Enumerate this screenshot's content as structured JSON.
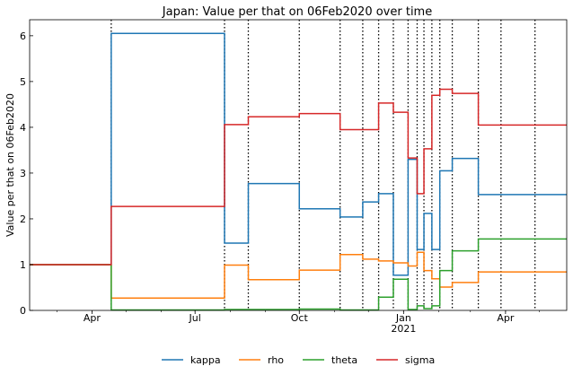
{
  "chart_data": {
    "type": "line",
    "title": "Japan: Value per that on 06Feb2020 over time",
    "xlabel": "",
    "ylabel": "Value per that on 06Feb2020",
    "x_range": [
      "2020-02-06",
      "2021-05-25"
    ],
    "ylim": [
      0,
      6.35
    ],
    "y_ticks": [
      0,
      1,
      2,
      3,
      4,
      5,
      6
    ],
    "x_ticks": [
      {
        "date": "2020-04-01",
        "label": "Apr",
        "sublabel": ""
      },
      {
        "date": "2020-07-01",
        "label": "Jul",
        "sublabel": ""
      },
      {
        "date": "2020-10-01",
        "label": "Oct",
        "sublabel": ""
      },
      {
        "date": "2021-01-01",
        "label": "Jan",
        "sublabel": "2021"
      },
      {
        "date": "2021-04-01",
        "label": "Apr",
        "sublabel": ""
      }
    ],
    "change_dates": [
      "2020-04-18",
      "2020-07-27",
      "2020-08-17",
      "2020-10-01",
      "2020-11-06",
      "2020-11-26",
      "2020-12-10",
      "2020-12-23",
      "2021-01-05",
      "2021-01-13",
      "2021-01-19",
      "2021-01-26",
      "2021-02-02",
      "2021-02-13",
      "2021-03-08",
      "2021-03-28",
      "2021-04-27"
    ],
    "series": [
      {
        "name": "kappa",
        "color": "#1f77b4",
        "steps": [
          [
            "2020-02-06",
            1.0
          ],
          [
            "2020-04-18",
            6.05
          ],
          [
            "2020-07-27",
            1.47
          ],
          [
            "2020-08-17",
            2.77
          ],
          [
            "2020-10-01",
            2.22
          ],
          [
            "2020-11-06",
            2.04
          ],
          [
            "2020-11-26",
            2.37
          ],
          [
            "2020-12-10",
            2.55
          ],
          [
            "2020-12-23",
            0.77
          ],
          [
            "2021-01-05",
            3.3
          ],
          [
            "2021-01-13",
            1.33
          ],
          [
            "2021-01-19",
            2.12
          ],
          [
            "2021-01-26",
            1.33
          ],
          [
            "2021-02-02",
            3.05
          ],
          [
            "2021-02-13",
            3.32
          ],
          [
            "2021-03-08",
            2.53
          ],
          [
            "2021-05-25",
            2.53
          ]
        ]
      },
      {
        "name": "rho",
        "color": "#ff7f0e",
        "steps": [
          [
            "2020-02-06",
            1.0
          ],
          [
            "2020-04-18",
            0.27
          ],
          [
            "2020-07-27",
            0.99
          ],
          [
            "2020-08-17",
            0.67
          ],
          [
            "2020-10-01",
            0.88
          ],
          [
            "2020-11-06",
            1.22
          ],
          [
            "2020-11-26",
            1.12
          ],
          [
            "2020-12-10",
            1.08
          ],
          [
            "2020-12-23",
            1.04
          ],
          [
            "2021-01-05",
            0.97
          ],
          [
            "2021-01-13",
            1.27
          ],
          [
            "2021-01-19",
            0.87
          ],
          [
            "2021-01-26",
            0.69
          ],
          [
            "2021-02-02",
            0.51
          ],
          [
            "2021-02-13",
            0.61
          ],
          [
            "2021-03-08",
            0.84
          ],
          [
            "2021-05-25",
            0.84
          ]
        ]
      },
      {
        "name": "theta",
        "color": "#2ca02c",
        "steps": [
          [
            "2020-02-06",
            1.0
          ],
          [
            "2020-04-18",
            0.01
          ],
          [
            "2020-07-27",
            0.02
          ],
          [
            "2020-08-17",
            0.02
          ],
          [
            "2020-10-01",
            0.03
          ],
          [
            "2020-11-06",
            0.01
          ],
          [
            "2020-11-26",
            0.01
          ],
          [
            "2020-12-10",
            0.29
          ],
          [
            "2020-12-23",
            0.68
          ],
          [
            "2021-01-05",
            0.02
          ],
          [
            "2021-01-13",
            0.1
          ],
          [
            "2021-01-19",
            0.04
          ],
          [
            "2021-01-26",
            0.1
          ],
          [
            "2021-02-02",
            0.87
          ],
          [
            "2021-02-13",
            1.3
          ],
          [
            "2021-03-08",
            1.56
          ],
          [
            "2021-05-25",
            1.56
          ]
        ]
      },
      {
        "name": "sigma",
        "color": "#d62728",
        "steps": [
          [
            "2020-02-06",
            1.0
          ],
          [
            "2020-04-18",
            2.27
          ],
          [
            "2020-07-27",
            4.06
          ],
          [
            "2020-08-17",
            4.23
          ],
          [
            "2020-10-01",
            4.3
          ],
          [
            "2020-11-06",
            3.95
          ],
          [
            "2020-11-26",
            3.95
          ],
          [
            "2020-12-10",
            4.53
          ],
          [
            "2020-12-23",
            4.33
          ],
          [
            "2021-01-05",
            3.33
          ],
          [
            "2021-01-13",
            2.55
          ],
          [
            "2021-01-19",
            3.53
          ],
          [
            "2021-01-26",
            4.7
          ],
          [
            "2021-02-02",
            4.83
          ],
          [
            "2021-02-13",
            4.74
          ],
          [
            "2021-03-08",
            4.05
          ],
          [
            "2021-05-25",
            4.05
          ]
        ]
      }
    ],
    "grid": false,
    "legend_position": "bottom-center"
  }
}
